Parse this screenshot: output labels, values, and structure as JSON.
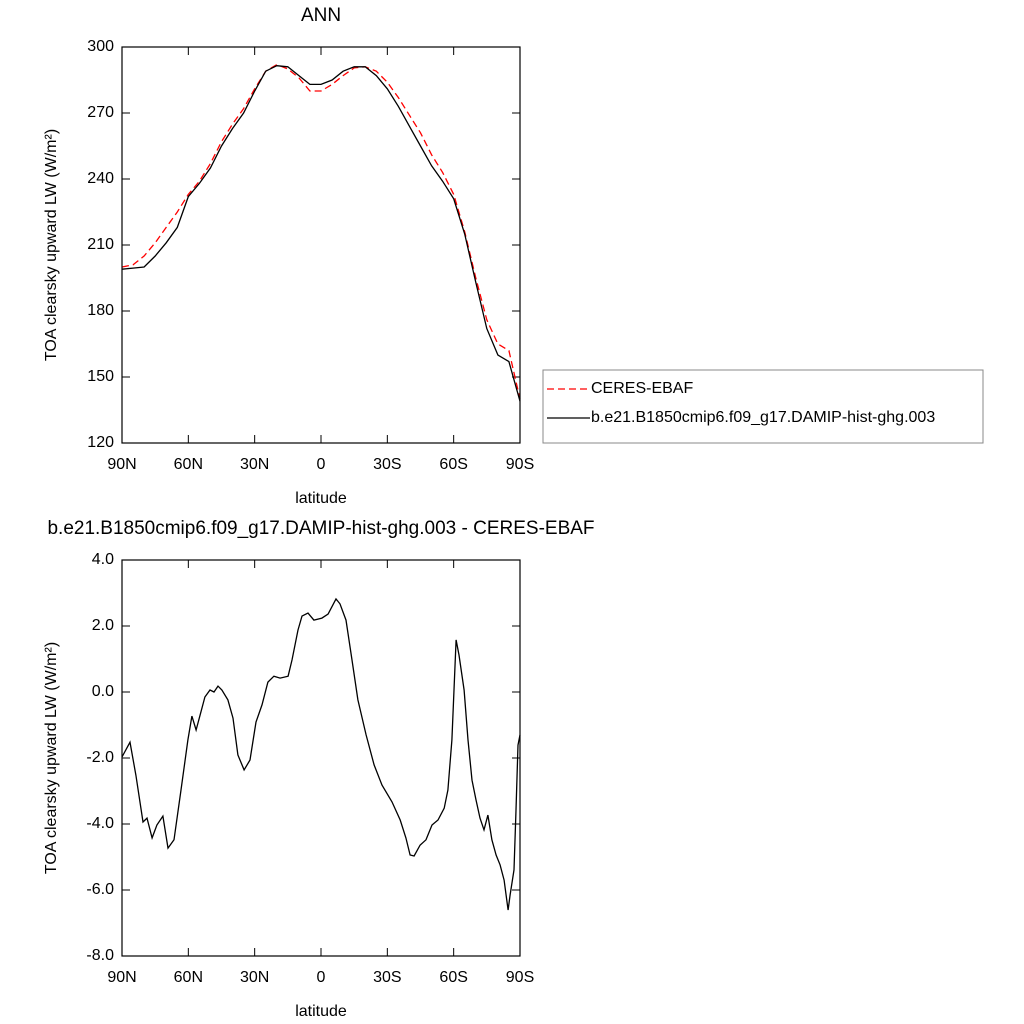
{
  "chart_data": [
    {
      "type": "line",
      "title": "ANN",
      "xlabel": "latitude",
      "ylabel": "TOA clearsky upward LW (W/m²)",
      "x": [
        90,
        85,
        80,
        75,
        70,
        65,
        60,
        55,
        50,
        45,
        40,
        35,
        30,
        25,
        20,
        15,
        10,
        5,
        0,
        -5,
        -10,
        -15,
        -20,
        -25,
        -30,
        -35,
        -40,
        -45,
        -50,
        -55,
        -60,
        -65,
        -70,
        -75,
        -80,
        -85,
        -90
      ],
      "series": [
        {
          "name": "CERES-EBAF",
          "color": "#ff0000",
          "dash": true,
          "values": [
            200,
            201,
            205,
            211,
            218,
            225,
            233,
            239,
            247,
            257,
            265,
            272,
            281,
            289,
            292,
            290,
            286,
            280,
            280,
            283,
            287,
            290.5,
            291,
            289,
            284,
            277,
            269,
            261,
            251,
            243,
            233,
            216,
            195,
            176,
            165,
            162,
            140
          ]
        },
        {
          "name": "b.e21.B1850cmip6.f09_g17.DAMIP-hist-ghg.003",
          "color": "#000000",
          "dash": false,
          "values": [
            199,
            199.5,
            200,
            205,
            211,
            218,
            232,
            238,
            245,
            255,
            263,
            270,
            280,
            289,
            291.5,
            291,
            287,
            283,
            283,
            285,
            289,
            291,
            291,
            287,
            281,
            273,
            264,
            255,
            246,
            239,
            231,
            215,
            193,
            172,
            160,
            157,
            139
          ]
        }
      ],
      "xlim": [
        90,
        -90
      ],
      "xticks": [
        {
          "value": 90,
          "label": "90N"
        },
        {
          "value": 60,
          "label": "60N"
        },
        {
          "value": 30,
          "label": "30N"
        },
        0,
        {
          "value": -30,
          "label": "30S"
        },
        {
          "value": -60,
          "label": "60S"
        },
        {
          "value": -90,
          "label": "90S"
        }
      ],
      "ylim": [
        120,
        300
      ],
      "yticks": [
        120,
        150,
        180,
        210,
        240,
        270,
        300
      ],
      "legend": "right"
    },
    {
      "type": "line",
      "title": "b.e21.B1850cmip6.f09_g17.DAMIP-hist-ghg.003 - CERES-EBAF",
      "xlabel": "latitude",
      "ylabel": "TOA clearsky upward LW (W/m²)",
      "x": [
        90.0,
        86.4,
        83.7,
        80.5,
        78.7,
        76.4,
        74.2,
        71.5,
        69.2,
        66.5,
        63.3,
        60.2,
        58.4,
        56.5,
        54.7,
        52.5,
        50.2,
        48.4,
        46.6,
        44.8,
        42.1,
        39.8,
        37.6,
        34.8,
        32.1,
        29.4,
        26.7,
        24.0,
        21.3,
        18.5,
        14.9,
        13.1,
        10.4,
        8.6,
        5.9,
        3.2,
        -0.4,
        -3.2,
        -6.8,
        -8.6,
        -11.3,
        -14.0,
        -16.7,
        -20.4,
        -24.0,
        -27.6,
        -32.1,
        -35.8,
        -38.4,
        -40.3,
        -42.1,
        -44.8,
        -47.5,
        -50.2,
        -52.9,
        -55.7,
        -57.4,
        -59.2,
        -61.1,
        -62.4,
        -64.7,
        -66.5,
        -68.3,
        -70.1,
        -71.9,
        -73.7,
        -75.5,
        -77.3,
        -79.2,
        -81.0,
        -82.8,
        -84.6,
        -85.5,
        -87.3,
        -88.2,
        -89.1,
        -90.0
      ],
      "values": [
        -1.97,
        -1.52,
        -2.52,
        -3.94,
        -3.82,
        -4.42,
        -4.03,
        -3.76,
        -4.73,
        -4.48,
        -2.97,
        -1.45,
        -0.73,
        -1.15,
        -0.7,
        -0.15,
        0.06,
        0.0,
        0.18,
        0.06,
        -0.24,
        -0.79,
        -1.91,
        -2.36,
        -2.06,
        -0.91,
        -0.39,
        0.3,
        0.48,
        0.42,
        0.48,
        0.97,
        1.88,
        2.3,
        2.39,
        2.18,
        2.24,
        2.36,
        2.82,
        2.67,
        2.18,
        0.97,
        -0.24,
        -1.3,
        -2.21,
        -2.82,
        -3.33,
        -3.88,
        -4.42,
        -4.94,
        -4.97,
        -4.64,
        -4.48,
        -4.03,
        -3.88,
        -3.52,
        -2.97,
        -1.45,
        1.58,
        1.12,
        0.06,
        -1.45,
        -2.67,
        -3.27,
        -3.82,
        -4.18,
        -3.73,
        -4.48,
        -4.94,
        -5.24,
        -5.7,
        -6.61,
        -6.15,
        -5.39,
        -3.58,
        -1.61,
        -1.3
      ],
      "color": "#000000",
      "xlim": [
        90,
        -90
      ],
      "xticks": [
        {
          "value": 90,
          "label": "90N"
        },
        {
          "value": 60,
          "label": "60N"
        },
        {
          "value": 30,
          "label": "30N"
        },
        0,
        {
          "value": -30,
          "label": "30S"
        },
        {
          "value": -60,
          "label": "60S"
        },
        {
          "value": -90,
          "label": "90S"
        }
      ],
      "ylim": [
        -8,
        4
      ],
      "yticks": [
        {
          "value": -8,
          "label": "-8.0"
        },
        {
          "value": -6,
          "label": "-6.0"
        },
        {
          "value": -4,
          "label": "-4.0"
        },
        {
          "value": -2,
          "label": "-2.0"
        },
        {
          "value": 0,
          "label": "0.0"
        },
        {
          "value": 2,
          "label": "2.0"
        },
        {
          "value": 4,
          "label": "4.0"
        }
      ]
    }
  ]
}
